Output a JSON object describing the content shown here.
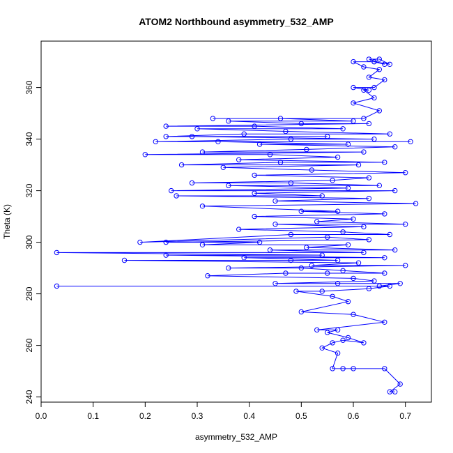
{
  "chart_data": {
    "type": "scatter",
    "title": "ATOM2 Northbound asymmetry_532_AMP",
    "xlabel": "asymmetry_532_AMP",
    "ylabel": "Theta (K)",
    "xlim": [
      0.0,
      0.75
    ],
    "ylim": [
      238,
      378
    ],
    "x_ticks": [
      "0.0",
      "0.1",
      "0.2",
      "0.3",
      "0.4",
      "0.5",
      "0.6",
      "0.7"
    ],
    "y_ticks": [
      "240",
      "260",
      "280",
      "300",
      "320",
      "340",
      "360"
    ],
    "series_color": "#0000ff",
    "lines_connect_points": true,
    "grid": false,
    "series": [
      {
        "points": [
          [
            0.68,
            242
          ],
          [
            0.67,
            242
          ],
          [
            0.69,
            245
          ],
          [
            0.66,
            251
          ],
          [
            0.6,
            251
          ],
          [
            0.58,
            251
          ],
          [
            0.56,
            251
          ],
          [
            0.57,
            257
          ],
          [
            0.54,
            259
          ],
          [
            0.56,
            261
          ],
          [
            0.58,
            262
          ],
          [
            0.62,
            261
          ],
          [
            0.59,
            263
          ],
          [
            0.55,
            265
          ],
          [
            0.57,
            266
          ],
          [
            0.53,
            266
          ],
          [
            0.66,
            269
          ],
          [
            0.6,
            272
          ],
          [
            0.5,
            273
          ],
          [
            0.59,
            277
          ],
          [
            0.56,
            279
          ],
          [
            0.49,
            281
          ],
          [
            0.54,
            281
          ],
          [
            0.63,
            282
          ],
          [
            0.67,
            283
          ],
          [
            0.03,
            283
          ],
          [
            0.65,
            283
          ],
          [
            0.69,
            284
          ],
          [
            0.57,
            284
          ],
          [
            0.45,
            284
          ],
          [
            0.64,
            285
          ],
          [
            0.6,
            286
          ],
          [
            0.32,
            287
          ],
          [
            0.47,
            288
          ],
          [
            0.55,
            288
          ],
          [
            0.66,
            288
          ],
          [
            0.58,
            289
          ],
          [
            0.5,
            290
          ],
          [
            0.36,
            290
          ],
          [
            0.7,
            291
          ],
          [
            0.52,
            291
          ],
          [
            0.61,
            292
          ],
          [
            0.16,
            293
          ],
          [
            0.48,
            293
          ],
          [
            0.57,
            293
          ],
          [
            0.39,
            294
          ],
          [
            0.66,
            294
          ],
          [
            0.24,
            295
          ],
          [
            0.54,
            295
          ],
          [
            0.03,
            296
          ],
          [
            0.62,
            296
          ],
          [
            0.44,
            297
          ],
          [
            0.68,
            297
          ],
          [
            0.51,
            298
          ],
          [
            0.59,
            299
          ],
          [
            0.31,
            299
          ],
          [
            0.42,
            300
          ],
          [
            0.24,
            300
          ],
          [
            0.63,
            301
          ],
          [
            0.55,
            302
          ],
          [
            0.19,
            300
          ],
          [
            0.48,
            303
          ],
          [
            0.67,
            303
          ],
          [
            0.58,
            304
          ],
          [
            0.38,
            305
          ],
          [
            0.62,
            306
          ],
          [
            0.45,
            307
          ],
          [
            0.7,
            307
          ],
          [
            0.53,
            308
          ],
          [
            0.6,
            309
          ],
          [
            0.41,
            310
          ],
          [
            0.66,
            311
          ],
          [
            0.5,
            312
          ],
          [
            0.57,
            312
          ],
          [
            0.31,
            314
          ],
          [
            0.72,
            315
          ],
          [
            0.45,
            316
          ],
          [
            0.63,
            317
          ],
          [
            0.26,
            318
          ],
          [
            0.54,
            318
          ],
          [
            0.41,
            319
          ],
          [
            0.68,
            320
          ],
          [
            0.25,
            320
          ],
          [
            0.59,
            321
          ],
          [
            0.36,
            322
          ],
          [
            0.65,
            322
          ],
          [
            0.48,
            323
          ],
          [
            0.29,
            323
          ],
          [
            0.56,
            324
          ],
          [
            0.63,
            325
          ],
          [
            0.41,
            326
          ],
          [
            0.7,
            327
          ],
          [
            0.52,
            328
          ],
          [
            0.35,
            329
          ],
          [
            0.61,
            330
          ],
          [
            0.27,
            330
          ],
          [
            0.46,
            331
          ],
          [
            0.66,
            331
          ],
          [
            0.38,
            332
          ],
          [
            0.57,
            333
          ],
          [
            0.44,
            334
          ],
          [
            0.2,
            334
          ],
          [
            0.62,
            335
          ],
          [
            0.31,
            335
          ],
          [
            0.51,
            336
          ],
          [
            0.68,
            337
          ],
          [
            0.42,
            338
          ],
          [
            0.59,
            338
          ],
          [
            0.34,
            339
          ],
          [
            0.71,
            339
          ],
          [
            0.22,
            339
          ],
          [
            0.48,
            340
          ],
          [
            0.64,
            340
          ],
          [
            0.29,
            341
          ],
          [
            0.55,
            341
          ],
          [
            0.24,
            341
          ],
          [
            0.39,
            342
          ],
          [
            0.67,
            342
          ],
          [
            0.47,
            343
          ],
          [
            0.3,
            344
          ],
          [
            0.58,
            344
          ],
          [
            0.41,
            345
          ],
          [
            0.24,
            345
          ],
          [
            0.63,
            346
          ],
          [
            0.5,
            346
          ],
          [
            0.36,
            347
          ],
          [
            0.6,
            347
          ],
          [
            0.46,
            348
          ],
          [
            0.33,
            348
          ],
          [
            0.62,
            348
          ],
          [
            0.65,
            351
          ],
          [
            0.6,
            354
          ],
          [
            0.64,
            356
          ],
          [
            0.62,
            359
          ],
          [
            0.63,
            359
          ],
          [
            0.6,
            360
          ],
          [
            0.64,
            360
          ],
          [
            0.66,
            363
          ],
          [
            0.63,
            364
          ],
          [
            0.65,
            367
          ],
          [
            0.62,
            368
          ],
          [
            0.6,
            370
          ],
          [
            0.64,
            370
          ],
          [
            0.66,
            369
          ],
          [
            0.63,
            371
          ],
          [
            0.65,
            371
          ],
          [
            0.67,
            369
          ],
          [
            0.64,
            370
          ]
        ]
      }
    ]
  }
}
